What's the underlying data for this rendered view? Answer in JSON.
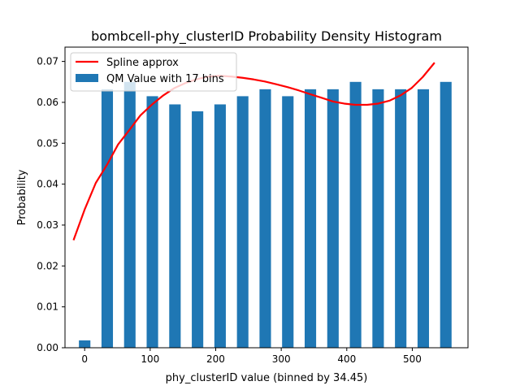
{
  "chart_data": {
    "type": "bar",
    "title": "bombcell-phy_clusterID Probability Density Histogram",
    "xlabel": "phy_clusterID value (binned by 34.45)",
    "ylabel": "Probability",
    "xlim": [
      -30,
      585
    ],
    "ylim": [
      0,
      0.0735
    ],
    "xticks": [
      0,
      100,
      200,
      300,
      400,
      500
    ],
    "yticks": [
      0.0,
      0.01,
      0.02,
      0.03,
      0.04,
      0.05,
      0.06,
      0.07
    ],
    "ytick_labels": [
      "0.00",
      "0.01",
      "0.02",
      "0.03",
      "0.04",
      "0.05",
      "0.06",
      "0.07"
    ],
    "grid": false,
    "legend_position": "upper-left",
    "bar_color": "#1f77b4",
    "line_color": "#ff0000",
    "series": [
      {
        "name": "QM Value with 17 bins",
        "type": "bar",
        "bar_width": 17.5,
        "x": [
          0,
          34.45,
          68.9,
          103.35,
          137.8,
          172.25,
          206.7,
          241.15,
          275.6,
          310.05,
          344.5,
          378.95,
          413.4,
          447.85,
          482.3,
          516.75,
          551.2
        ],
        "values": [
          0.0018,
          0.0632,
          0.065,
          0.0615,
          0.0595,
          0.0578,
          0.0595,
          0.0615,
          0.0632,
          0.0615,
          0.0632,
          0.0632,
          0.065,
          0.0632,
          0.0632,
          0.0632,
          0.065
        ]
      },
      {
        "name": "Spline approx",
        "type": "line",
        "x": [
          -17,
          0,
          17,
          34,
          51,
          68,
          85,
          103,
          120,
          137,
          155,
          172,
          189,
          206,
          224,
          241,
          258,
          275,
          293,
          310,
          327,
          344,
          362,
          379,
          396,
          413,
          431,
          448,
          465,
          482,
          499,
          516,
          534
        ],
        "values": [
          0.0263,
          0.0338,
          0.0403,
          0.0447,
          0.0497,
          0.0532,
          0.0568,
          0.0595,
          0.0617,
          0.0635,
          0.0648,
          0.0657,
          0.0663,
          0.0665,
          0.0663,
          0.066,
          0.0656,
          0.0651,
          0.0644,
          0.0637,
          0.0629,
          0.062,
          0.0611,
          0.0602,
          0.0597,
          0.0594,
          0.0594,
          0.0597,
          0.0604,
          0.0617,
          0.0635,
          0.0662,
          0.0697
        ]
      }
    ]
  }
}
